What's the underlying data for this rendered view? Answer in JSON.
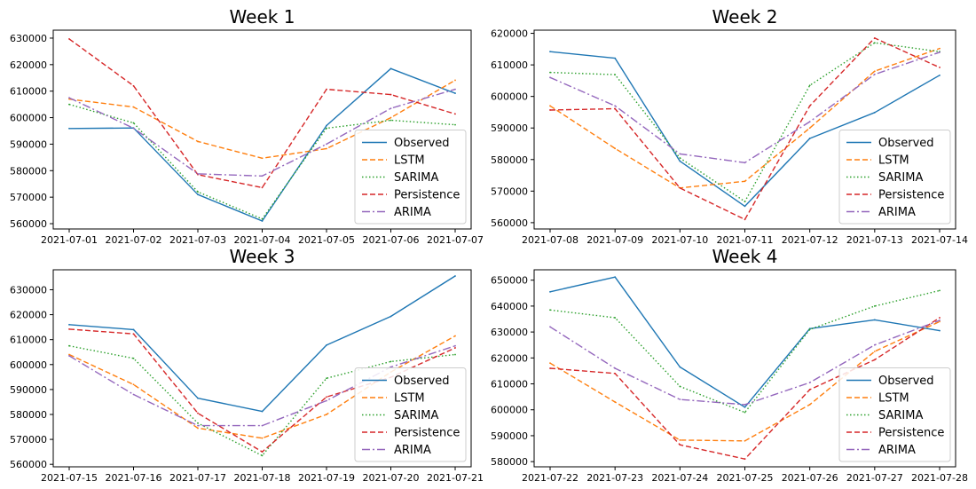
{
  "chart_data": [
    {
      "type": "line",
      "title": "Week 1",
      "categories": [
        "2021-07-01",
        "2021-07-02",
        "2021-07-03",
        "2021-07-04",
        "2021-07-05",
        "2021-07-06",
        "2021-07-07"
      ],
      "ylim": [
        558000,
        633000
      ],
      "yticks": [
        560000,
        570000,
        580000,
        590000,
        600000,
        610000,
        620000,
        630000
      ],
      "grid": false,
      "legend": "lower-right",
      "series": [
        {
          "name": "Observed",
          "values": [
            595900,
            596100,
            571000,
            561000,
            597000,
            618500,
            609200
          ]
        },
        {
          "name": "LSTM",
          "values": [
            607000,
            604000,
            591000,
            584700,
            588300,
            600000,
            614100
          ]
        },
        {
          "name": "SARIMA",
          "values": [
            605000,
            598000,
            572000,
            561800,
            596000,
            599000,
            597300
          ]
        },
        {
          "name": "Persistence",
          "values": [
            629700,
            612000,
            578500,
            573600,
            610700,
            608700,
            601400
          ]
        },
        {
          "name": "ARIMA",
          "values": [
            607500,
            596000,
            578800,
            578000,
            590000,
            603500,
            610700
          ]
        }
      ]
    },
    {
      "type": "line",
      "title": "Week 2",
      "categories": [
        "2021-07-08",
        "2021-07-09",
        "2021-07-10",
        "2021-07-11",
        "2021-07-12",
        "2021-07-13",
        "2021-07-14"
      ],
      "ylim": [
        558000,
        621000
      ],
      "yticks": [
        560000,
        570000,
        580000,
        590000,
        600000,
        610000,
        620000
      ],
      "grid": false,
      "legend": "lower-right",
      "series": [
        {
          "name": "Observed",
          "values": [
            614200,
            612100,
            579500,
            565200,
            586700,
            594900,
            606700
          ]
        },
        {
          "name": "LSTM",
          "values": [
            597000,
            583500,
            571000,
            573100,
            590000,
            608000,
            615200
          ]
        },
        {
          "name": "SARIMA",
          "values": [
            607600,
            606900,
            580500,
            566700,
            603500,
            617000,
            614200
          ]
        },
        {
          "name": "Persistence",
          "values": [
            595700,
            596100,
            571000,
            561000,
            597000,
            618500,
            609200
          ]
        },
        {
          "name": "ARIMA",
          "values": [
            606000,
            597000,
            581800,
            579000,
            592000,
            607000,
            614000
          ]
        }
      ]
    },
    {
      "type": "line",
      "title": "Week 3",
      "categories": [
        "2021-07-15",
        "2021-07-16",
        "2021-07-17",
        "2021-07-18",
        "2021-07-19",
        "2021-07-20",
        "2021-07-21"
      ],
      "ylim": [
        559000,
        638000
      ],
      "yticks": [
        560000,
        570000,
        580000,
        590000,
        600000,
        610000,
        620000,
        630000
      ],
      "grid": false,
      "legend": "lower-right",
      "series": [
        {
          "name": "Observed",
          "values": [
            616000,
            614000,
            586500,
            581200,
            607800,
            619300,
            635500
          ]
        },
        {
          "name": "LSTM",
          "values": [
            604000,
            592000,
            574500,
            570500,
            580000,
            597000,
            611500
          ]
        },
        {
          "name": "SARIMA",
          "values": [
            607500,
            602500,
            576500,
            563500,
            594500,
            601200,
            604000
          ]
        },
        {
          "name": "Persistence",
          "values": [
            614200,
            612300,
            580500,
            565000,
            587000,
            594900,
            606700
          ]
        },
        {
          "name": "ARIMA",
          "values": [
            603500,
            588000,
            575500,
            575500,
            585500,
            599000,
            607500
          ]
        }
      ]
    },
    {
      "type": "line",
      "title": "Week 4",
      "categories": [
        "2021-07-22",
        "2021-07-23",
        "2021-07-24",
        "2021-07-25",
        "2021-07-26",
        "2021-07-27",
        "2021-07-28"
      ],
      "ylim": [
        578000,
        654000
      ],
      "yticks": [
        580000,
        590000,
        600000,
        610000,
        620000,
        630000,
        640000,
        650000
      ],
      "grid": false,
      "legend": "lower-right",
      "series": [
        {
          "name": "Observed",
          "values": [
            645500,
            651200,
            616500,
            601000,
            631300,
            634700,
            630500
          ]
        },
        {
          "name": "LSTM",
          "values": [
            618000,
            603000,
            588300,
            588000,
            602000,
            622500,
            634000
          ]
        },
        {
          "name": "SARIMA",
          "values": [
            638500,
            635500,
            609000,
            599000,
            631000,
            640000,
            646000
          ]
        },
        {
          "name": "Persistence",
          "values": [
            616000,
            614000,
            586500,
            581000,
            607800,
            619300,
            635500
          ]
        },
        {
          "name": "ARIMA",
          "values": [
            632000,
            616000,
            604000,
            602000,
            610500,
            625000,
            634500
          ]
        }
      ]
    }
  ],
  "styles": {
    "Observed": {
      "color": "#1f77b4",
      "dash": ""
    },
    "LSTM": {
      "color": "#ff7f0e",
      "dash": "6,3"
    },
    "SARIMA": {
      "color": "#2ca02c",
      "dash": "1.5,2.5"
    },
    "Persistence": {
      "color": "#d62728",
      "dash": "6,3"
    },
    "ARIMA": {
      "color": "#9467bd",
      "dash": "9,3,2,3"
    }
  }
}
